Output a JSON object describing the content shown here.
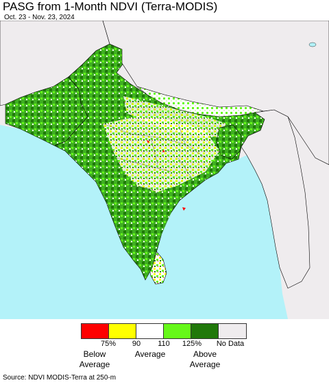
{
  "title": "PASG from 1-Month NDVI (Terra-MODIS)",
  "date_range": "Oct. 23 - Nov. 23, 2024",
  "map": {
    "region": "South Asia",
    "colors": {
      "ocean": "#b3f2f9",
      "no_data": "#efecee",
      "land_base": "#ffffff",
      "border": "#000000"
    }
  },
  "legend": {
    "swatches": [
      {
        "color": "#fe0000",
        "name": "below-average-strong"
      },
      {
        "color": "#ffff00",
        "name": "below-average"
      },
      {
        "color": "#ffffff",
        "name": "average"
      },
      {
        "color": "#66f819",
        "name": "above-average"
      },
      {
        "color": "#20780a",
        "name": "above-average-strong"
      },
      {
        "color": "#efecee",
        "name": "no-data"
      }
    ],
    "ticks": [
      "75%",
      "90",
      "110",
      "125%",
      "No Data"
    ],
    "categories": {
      "below": "Below\nAverage",
      "average": "Average",
      "above": "Above\nAverage"
    }
  },
  "source": "Source: NDVI MODIS-Terra at 250-m"
}
